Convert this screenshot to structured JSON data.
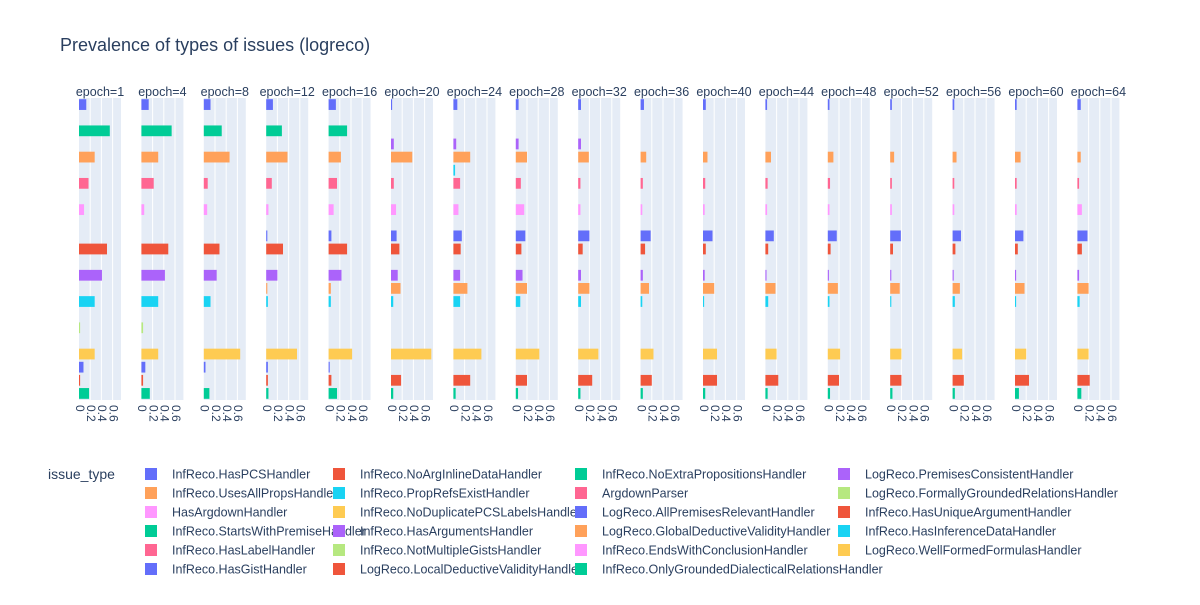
{
  "chart_data": {
    "type": "bar",
    "orientation": "horizontal",
    "title": "Prevalence of types of issues (logreco)",
    "facet_labels": [
      "epoch=1",
      "epoch=4",
      "epoch=8",
      "epoch=12",
      "epoch=16",
      "epoch=20",
      "epoch=24",
      "epoch=28",
      "epoch=32",
      "epoch=36",
      "epoch=40",
      "epoch=44",
      "epoch=48",
      "epoch=52",
      "epoch=56",
      "epoch=60",
      "epoch=64"
    ],
    "xlim": [
      0,
      0.75
    ],
    "x_ticks": [
      "0",
      "0.2",
      "0.4",
      "0.6"
    ],
    "x_tick_values": [
      0,
      0.2,
      0.4,
      0.6
    ],
    "legend_title": "issue_type",
    "legend_position": "bottom",
    "series": [
      {
        "name": "InfReco.HasPCSHandler",
        "color": "#636efa",
        "values": [
          0.13,
          0.13,
          0.12,
          0.12,
          0.13,
          0.02,
          0.07,
          0.05,
          0.05,
          0.06,
          0.05,
          0.03,
          0.03,
          0.03,
          0.03,
          0.03,
          0.06
        ]
      },
      {
        "name": "InfReco.NoArgInlineDataHandler",
        "color": "#EF553B",
        "values": [
          0,
          0,
          0,
          0,
          0,
          0,
          0,
          0,
          0,
          0,
          0,
          0,
          0,
          0,
          0,
          0,
          0
        ]
      },
      {
        "name": "InfReco.NoExtraPropositionsHandler",
        "color": "#00cc96",
        "values": [
          0.55,
          0.54,
          0.32,
          0.28,
          0.33,
          0,
          0,
          0,
          0,
          0,
          0,
          0,
          0,
          0,
          0,
          0,
          0
        ]
      },
      {
        "name": "LogReco.PremisesConsistentHandler",
        "color": "#ab63fa",
        "values": [
          0,
          0,
          0,
          0,
          0,
          0.05,
          0.05,
          0.05,
          0.05,
          0,
          0,
          0,
          0,
          0,
          0,
          0,
          0
        ]
      },
      {
        "name": "InfReco.UsesAllPropsHandler",
        "color": "#FFA15A",
        "values": [
          0.28,
          0.3,
          0.46,
          0.38,
          0.22,
          0.38,
          0.3,
          0.2,
          0.19,
          0.1,
          0.08,
          0.1,
          0.1,
          0.07,
          0.07,
          0.1,
          0.06
        ]
      },
      {
        "name": "InfReco.PropRefsExistHandler",
        "color": "#19d3f3",
        "values": [
          0,
          0,
          0,
          0,
          0,
          0,
          0.03,
          0,
          0,
          0,
          0,
          0,
          0,
          0,
          0,
          0,
          0
        ]
      },
      {
        "name": "ArgdownParser",
        "color": "#FF6692",
        "values": [
          0.17,
          0.22,
          0.07,
          0.1,
          0.15,
          0.05,
          0.12,
          0.09,
          0.04,
          0.04,
          0.04,
          0.04,
          0.04,
          0.03,
          0.03,
          0.03,
          0.03
        ]
      },
      {
        "name": "LogReco.FormallyGroundedRelationsHandler",
        "color": "#B6E880",
        "values": [
          0,
          0,
          0,
          0,
          0,
          0,
          0,
          0,
          0,
          0,
          0,
          0,
          0,
          0,
          0,
          0,
          0
        ]
      },
      {
        "name": "HasArgdownHandler",
        "color": "#FF97FF",
        "values": [
          0.09,
          0.05,
          0.06,
          0.04,
          0.09,
          0.09,
          0.09,
          0.15,
          0.04,
          0.03,
          0.03,
          0.03,
          0.03,
          0.03,
          0.03,
          0.03,
          0.08
        ]
      },
      {
        "name": "InfReco.NoDuplicatePCSLabelsHandler",
        "color": "#FECB52",
        "values": [
          0,
          0,
          0,
          0,
          0,
          0,
          0,
          0,
          0,
          0,
          0,
          0,
          0,
          0,
          0,
          0,
          0
        ]
      },
      {
        "name": "LogReco.AllPremisesRelevantHandler",
        "color": "#636efa",
        "values": [
          0,
          0,
          0,
          0.02,
          0.05,
          0.1,
          0.15,
          0.17,
          0.2,
          0.18,
          0.17,
          0.15,
          0.16,
          0.19,
          0.15,
          0.15,
          0.18
        ]
      },
      {
        "name": "InfReco.HasUniqueArgumentHandler",
        "color": "#EF553B",
        "values": [
          0.5,
          0.48,
          0.28,
          0.3,
          0.33,
          0.15,
          0.13,
          0.1,
          0.08,
          0.08,
          0.05,
          0.05,
          0.05,
          0.05,
          0.05,
          0.05,
          0.08
        ]
      },
      {
        "name": "InfReco.StartsWithPremiseHandler",
        "color": "#00cc96",
        "values": [
          0,
          0,
          0,
          0,
          0,
          0,
          0,
          0,
          0,
          0,
          0,
          0,
          0,
          0,
          0,
          0,
          0
        ]
      },
      {
        "name": "InfReco.HasArgumentsHandler",
        "color": "#ab63fa",
        "values": [
          0.41,
          0.42,
          0.23,
          0.2,
          0.23,
          0.12,
          0.12,
          0.12,
          0.05,
          0.04,
          0.03,
          0.02,
          0.02,
          0.02,
          0.02,
          0.02,
          0.03
        ]
      },
      {
        "name": "LogReco.GlobalDeductiveValidityHandler",
        "color": "#FFA15A",
        "values": [
          0,
          0,
          0,
          0.02,
          0.04,
          0.17,
          0.25,
          0.2,
          0.2,
          0.15,
          0.2,
          0.18,
          0.18,
          0.17,
          0.13,
          0.17,
          0.2
        ]
      },
      {
        "name": "InfReco.HasInferenceDataHandler",
        "color": "#19d3f3",
        "values": [
          0.28,
          0.3,
          0.12,
          0.03,
          0.04,
          0.04,
          0.12,
          0.08,
          0.05,
          0.03,
          0.02,
          0.05,
          0.03,
          0.02,
          0.04,
          0.02,
          0.04
        ]
      },
      {
        "name": "InfReco.HasLabelHandler",
        "color": "#FF6692",
        "values": [
          0,
          0,
          0,
          0,
          0,
          0,
          0,
          0,
          0,
          0,
          0,
          0,
          0,
          0,
          0,
          0,
          0
        ]
      },
      {
        "name": "InfReco.NotMultipleGistsHandler",
        "color": "#B6E880",
        "values": [
          0.02,
          0.03,
          0,
          0,
          0,
          0,
          0,
          0,
          0,
          0,
          0,
          0,
          0,
          0,
          0,
          0,
          0
        ]
      },
      {
        "name": "InfReco.EndsWithConclusionHandler",
        "color": "#FF97FF",
        "values": [
          0,
          0,
          0,
          0,
          0,
          0,
          0,
          0,
          0,
          0,
          0,
          0,
          0,
          0,
          0,
          0,
          0
        ]
      },
      {
        "name": "LogReco.WellFormedFormulasHandler",
        "color": "#FECB52",
        "values": [
          0.28,
          0.3,
          0.65,
          0.55,
          0.42,
          0.72,
          0.5,
          0.42,
          0.36,
          0.23,
          0.25,
          0.2,
          0.22,
          0.2,
          0.17,
          0.2,
          0.2
        ]
      },
      {
        "name": "InfReco.HasGistHandler",
        "color": "#636efa",
        "values": [
          0.08,
          0.07,
          0.03,
          0.03,
          0.02,
          0,
          0,
          0,
          0,
          0,
          0,
          0,
          0,
          0,
          0,
          0,
          0
        ]
      },
      {
        "name": "LogReco.LocalDeductiveValidityHandler",
        "color": "#EF553B",
        "values": [
          0.02,
          0.03,
          0,
          0.03,
          0.05,
          0.18,
          0.3,
          0.2,
          0.25,
          0.2,
          0.25,
          0.23,
          0.2,
          0.2,
          0.2,
          0.25,
          0.22
        ]
      },
      {
        "name": "InfReco.OnlyGroundedDialecticalRelationsHandler",
        "color": "#00cc96",
        "values": [
          0.18,
          0.15,
          0.1,
          0.04,
          0.15,
          0.04,
          0.04,
          0.04,
          0.04,
          0.04,
          0.04,
          0.04,
          0.04,
          0.04,
          0.04,
          0.07,
          0.07
        ]
      }
    ]
  }
}
